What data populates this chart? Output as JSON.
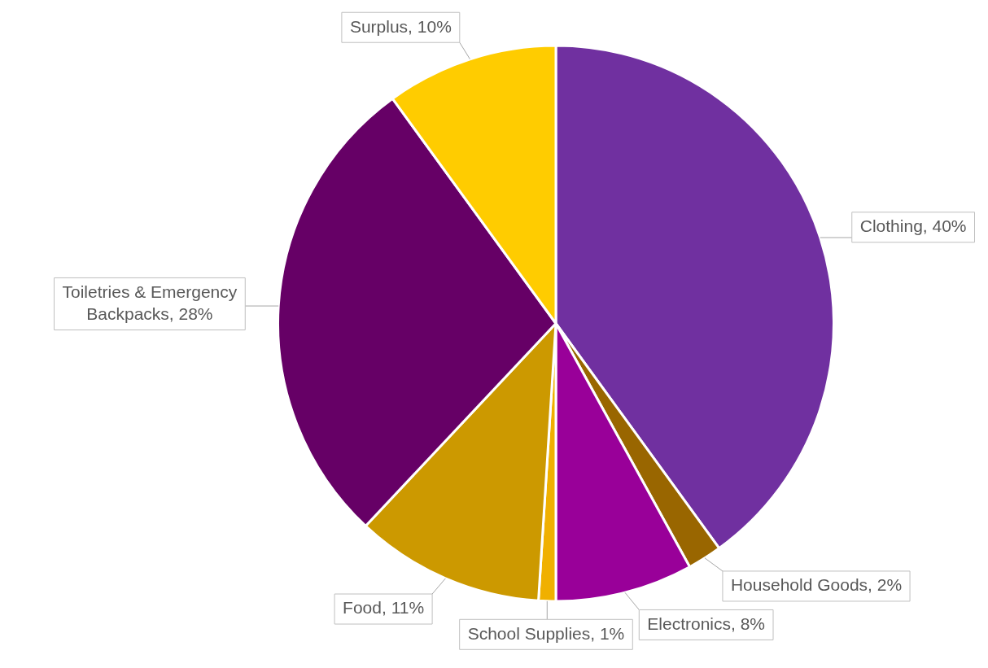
{
  "chart_data": {
    "type": "pie",
    "categories": [
      "Clothing",
      "Household Goods",
      "Electronics",
      "School Supplies",
      "Food",
      "Toiletries & Emergency Backpacks",
      "Surplus"
    ],
    "values": [
      40,
      2,
      8,
      1,
      11,
      28,
      10
    ],
    "value_labels": [
      "40%",
      "2%",
      "8%",
      "1%",
      "11%",
      "28%",
      "10%"
    ],
    "colors": [
      "#7030a0",
      "#996600",
      "#990099",
      "#f0b000",
      "#cc9900",
      "#660066",
      "#ffcc00"
    ],
    "legend": false
  }
}
